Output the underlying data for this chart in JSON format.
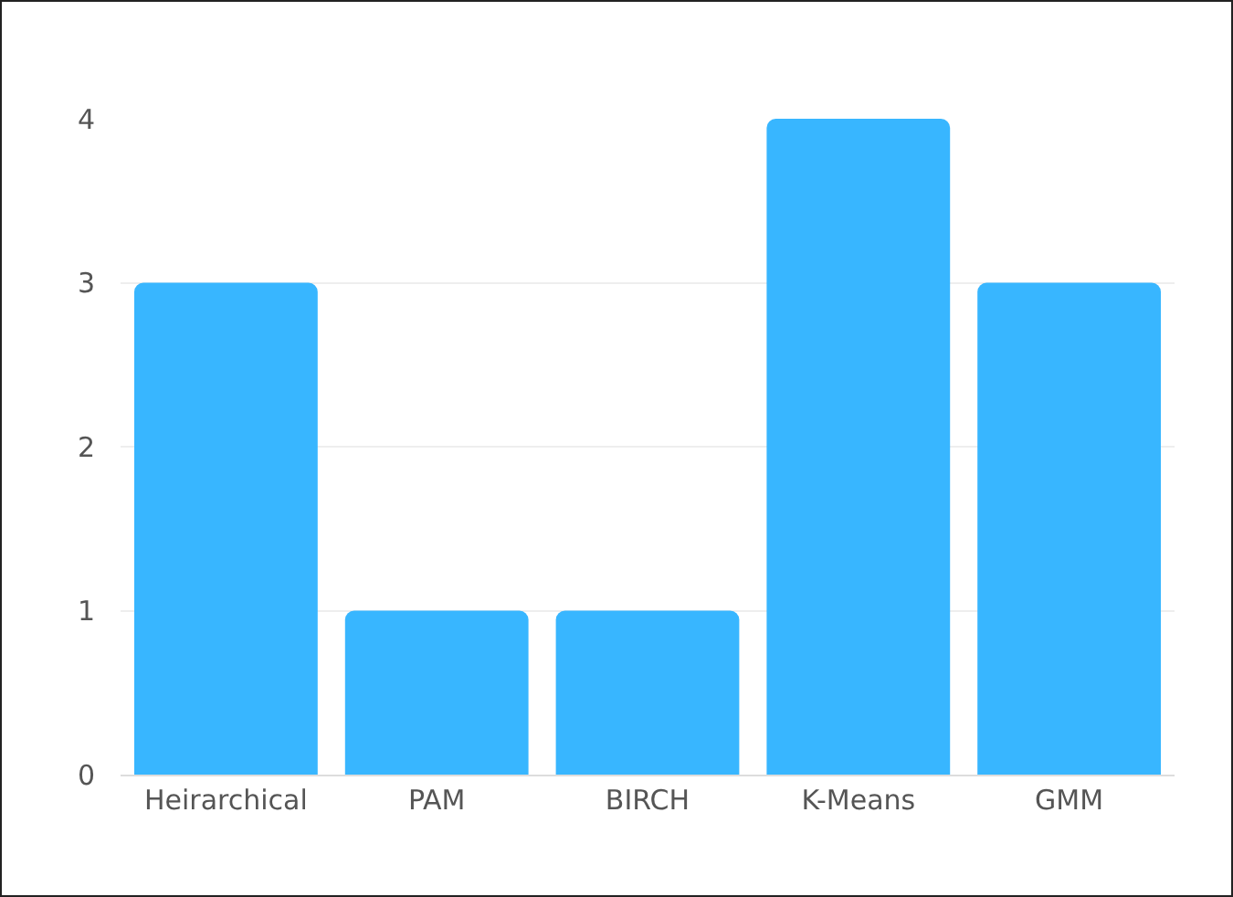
{
  "chart_data": {
    "type": "bar",
    "categories": [
      "Heirarchical",
      "PAM",
      "BIRCH",
      "K-Means",
      "GMM"
    ],
    "values": [
      3,
      1,
      1,
      4,
      3
    ],
    "color": "#38b6ff",
    "ylim": [
      0,
      4
    ],
    "yticks": [
      0,
      1,
      2,
      3,
      4
    ],
    "grid": "y",
    "legend": false
  }
}
